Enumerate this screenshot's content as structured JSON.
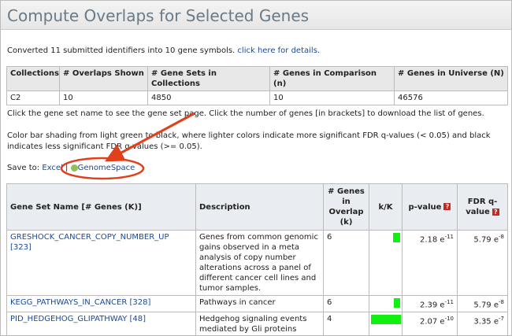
{
  "title": "Compute Overlaps for Selected Genes",
  "summary": {
    "text": "Converted 11 submitted identifiers into 10 gene symbols.",
    "link": "click here for details."
  },
  "stats_table": {
    "headers": [
      "Collections",
      "# Overlaps Shown",
      "# Gene Sets in Collections",
      "# Genes in Comparison (n)",
      "# Genes in Universe (N)"
    ],
    "row": [
      "C2",
      "10",
      "4850",
      "10",
      "46576"
    ]
  },
  "instructions": "Click the gene set name to see the gene set page. Click the number of genes [in brackets] to download the list of genes.",
  "color_note": "Color bar shading from light green to black, where lighter colors indicate more significant FDR q-values (< 0.05) and black indicates less significant FDR q-values (>= 0.05).",
  "save_to": {
    "label": "Save to:",
    "excel": "Excel",
    "separator": "|",
    "genomespace": "GenomeSpace"
  },
  "results_table": {
    "headers": [
      "Gene Set Name [# Genes (K)]",
      "Description",
      "# Genes in Overlap (k)",
      "k/K",
      "p-value",
      "FDR q-value"
    ],
    "help": "?",
    "rows": [
      {
        "name": "GRESHOCK_CANCER_COPY_NUMBER_UP",
        "genes": "[323]",
        "description": "Genes from common genomic gains observed in a meta analysis of copy number alterations across a panel of different cancer cell lines and tumor samples.",
        "overlap": "6",
        "k_over_K": 0.019,
        "p_value": "2.18 e",
        "p_exp": "-11",
        "fdr": "5.79 e",
        "fdr_exp": "-8"
      },
      {
        "name": "KEGG_PATHWAYS_IN_CANCER",
        "genes": "[328]",
        "description": "Pathways in cancer",
        "overlap": "6",
        "k_over_K": 0.018,
        "p_value": "2.39 e",
        "p_exp": "-11",
        "fdr": "5.79 e",
        "fdr_exp": "-8"
      },
      {
        "name": "PID_HEDGEHOG_GLIPATHWAY",
        "genes": "[48]",
        "description": "Hedgehog signaling events mediated by Gli proteins",
        "overlap": "4",
        "k_over_K": 0.083,
        "p_value": "2.07 e",
        "p_exp": "-10",
        "fdr": "3.35 e",
        "fdr_exp": "-7"
      }
    ]
  }
}
